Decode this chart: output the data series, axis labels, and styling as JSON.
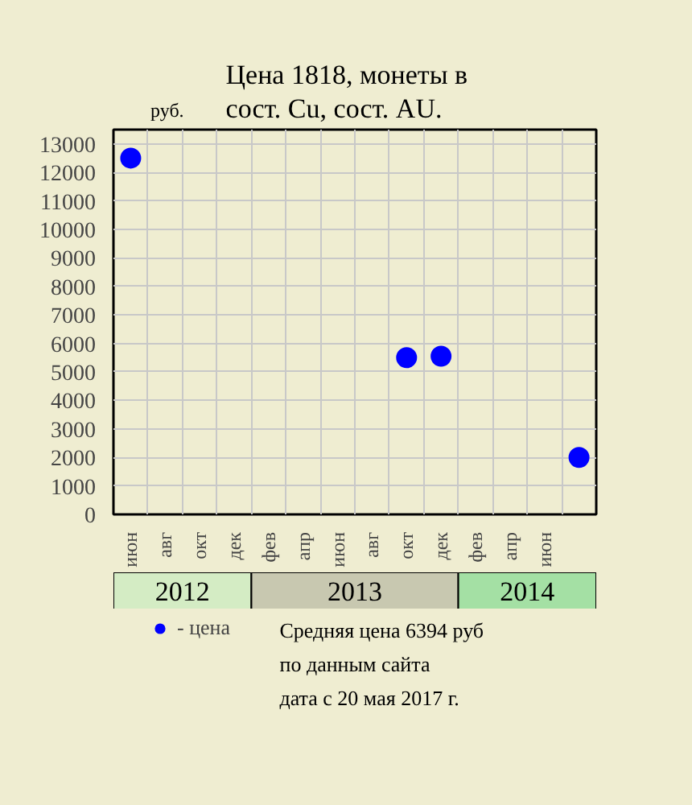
{
  "chart_data": {
    "type": "scatter",
    "title": "Цена 1818, монеты в\nсост. Cu, сост. AU.",
    "ylabel": "руб.",
    "categories": [
      "июн",
      "авг",
      "окт",
      "дек",
      "фев",
      "апр",
      "июн",
      "авг",
      "окт",
      "дек",
      "фев",
      "апр",
      "июн",
      null
    ],
    "series": [
      {
        "name": "- цена",
        "color": "#0000ff",
        "values": [
          12500,
          null,
          null,
          null,
          null,
          null,
          null,
          null,
          5500,
          5550,
          null,
          null,
          null,
          2000
        ]
      }
    ],
    "ylim": [
      0,
      13500
    ],
    "yticks": [
      0,
      1000,
      2000,
      3000,
      4000,
      5000,
      6000,
      7000,
      8000,
      9000,
      10000,
      11000,
      12000,
      13000
    ],
    "annotations": [
      "2012",
      "2013",
      "2014",
      "Средняя цена 6394 руб",
      "по данным сайта",
      "дата с 20 мая 2017 г."
    ],
    "grid": true,
    "legend": "bottom left",
    "marker": "circle"
  }
}
